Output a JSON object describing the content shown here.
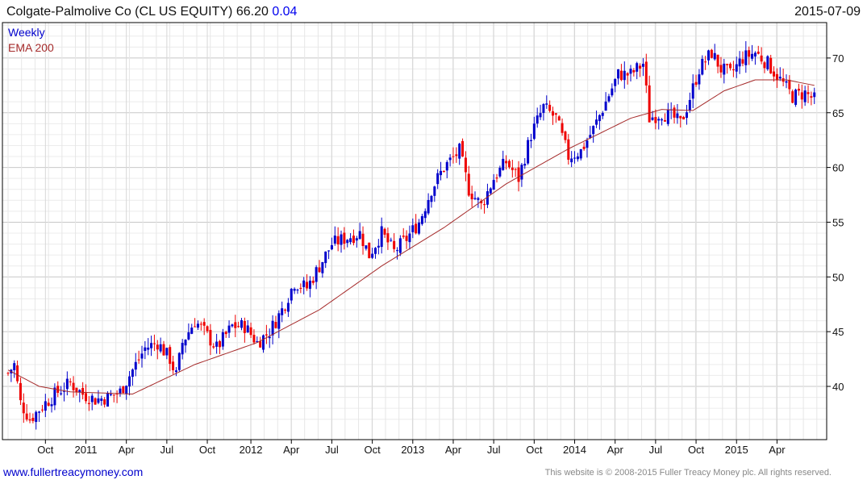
{
  "header": {
    "title": "Colgate-Palmolive Co (CL US EQUITY) 66.20",
    "change": "0.04",
    "date": "2015-07-09"
  },
  "legend": {
    "period": "Weekly",
    "indicator": "EMA 200"
  },
  "footer": {
    "link": "www.fullertreacymoney.com",
    "copyright": "This website is © 2008-2015 Fuller Treacy Money plc. All rights reserved."
  },
  "colors": {
    "up": "#0000cc",
    "down": "#ee0000",
    "ema": "#a52a2a"
  },
  "chart_data": {
    "type": "candlestick",
    "title": "Colgate-Palmolive Co (CL US EQUITY)",
    "weeks": 260,
    "ylim": [
      36,
      73
    ],
    "y_ticks": [
      40,
      45,
      50,
      55,
      60,
      65,
      70
    ],
    "x_ticks": [
      {
        "label": "Oct",
        "week": 12
      },
      {
        "label": "2011",
        "week": 25
      },
      {
        "label": "Apr",
        "week": 38
      },
      {
        "label": "Jul",
        "week": 51
      },
      {
        "label": "Oct",
        "week": 64
      },
      {
        "label": "2012",
        "week": 78
      },
      {
        "label": "Apr",
        "week": 91
      },
      {
        "label": "Jul",
        "week": 104
      },
      {
        "label": "Oct",
        "week": 117
      },
      {
        "label": "2013",
        "week": 130
      },
      {
        "label": "Apr",
        "week": 143
      },
      {
        "label": "Jul",
        "week": 156
      },
      {
        "label": "Oct",
        "week": 169
      },
      {
        "label": "2014",
        "week": 182
      },
      {
        "label": "Apr",
        "week": 195
      },
      {
        "label": "Jul",
        "week": 208
      },
      {
        "label": "Oct",
        "week": 221
      },
      {
        "label": "2015",
        "week": 234
      },
      {
        "label": "Apr",
        "week": 247
      }
    ],
    "close_anchors": [
      [
        0,
        41.2
      ],
      [
        2,
        42
      ],
      [
        4,
        38.5
      ],
      [
        7,
        37
      ],
      [
        12,
        38.5
      ],
      [
        16,
        39.5
      ],
      [
        20,
        40.3
      ],
      [
        24,
        39.3
      ],
      [
        28,
        38.8
      ],
      [
        32,
        39
      ],
      [
        36,
        39.5
      ],
      [
        40,
        41.5
      ],
      [
        44,
        43.5
      ],
      [
        48,
        44
      ],
      [
        52,
        42.5
      ],
      [
        54,
        41
      ],
      [
        56,
        44
      ],
      [
        60,
        46
      ],
      [
        63,
        45
      ],
      [
        67,
        43.5
      ],
      [
        72,
        45.5
      ],
      [
        76,
        45.5
      ],
      [
        80,
        44
      ],
      [
        84,
        45
      ],
      [
        88,
        47
      ],
      [
        92,
        49.5
      ],
      [
        96,
        49
      ],
      [
        100,
        51
      ],
      [
        104,
        53
      ],
      [
        108,
        53.5
      ],
      [
        113,
        54
      ],
      [
        116,
        52
      ],
      [
        120,
        54
      ],
      [
        124,
        52.3
      ],
      [
        128,
        53.5
      ],
      [
        132,
        55
      ],
      [
        136,
        58
      ],
      [
        140,
        60
      ],
      [
        145,
        61.5
      ],
      [
        148,
        58
      ],
      [
        152,
        56.5
      ],
      [
        156,
        59
      ],
      [
        160,
        60.5
      ],
      [
        164,
        59
      ],
      [
        168,
        63
      ],
      [
        172,
        65.5
      ],
      [
        176,
        64.5
      ],
      [
        180,
        61
      ],
      [
        184,
        61.5
      ],
      [
        188,
        63.5
      ],
      [
        192,
        66
      ],
      [
        196,
        68.5
      ],
      [
        200,
        68.5
      ],
      [
        204,
        69.5
      ],
      [
        206,
        64.5
      ],
      [
        210,
        65
      ],
      [
        214,
        64.5
      ],
      [
        216,
        64
      ],
      [
        218,
        65.5
      ],
      [
        222,
        69
      ],
      [
        226,
        70.5
      ],
      [
        229,
        69
      ],
      [
        232,
        68.5
      ],
      [
        236,
        70
      ],
      [
        240,
        70.5
      ],
      [
        244,
        69.5
      ],
      [
        248,
        68
      ],
      [
        252,
        66.5
      ],
      [
        256,
        66.8
      ],
      [
        259,
        66.2
      ]
    ],
    "ema_anchors": [
      [
        0,
        41.5
      ],
      [
        10,
        40
      ],
      [
        20,
        39.5
      ],
      [
        40,
        39.3
      ],
      [
        60,
        42
      ],
      [
        80,
        44
      ],
      [
        100,
        47
      ],
      [
        120,
        51
      ],
      [
        140,
        54.5
      ],
      [
        160,
        58.5
      ],
      [
        180,
        61.7
      ],
      [
        200,
        64.5
      ],
      [
        210,
        65.3
      ],
      [
        220,
        65.2
      ],
      [
        230,
        67
      ],
      [
        240,
        68
      ],
      [
        250,
        68
      ],
      [
        259,
        67.5
      ]
    ]
  }
}
